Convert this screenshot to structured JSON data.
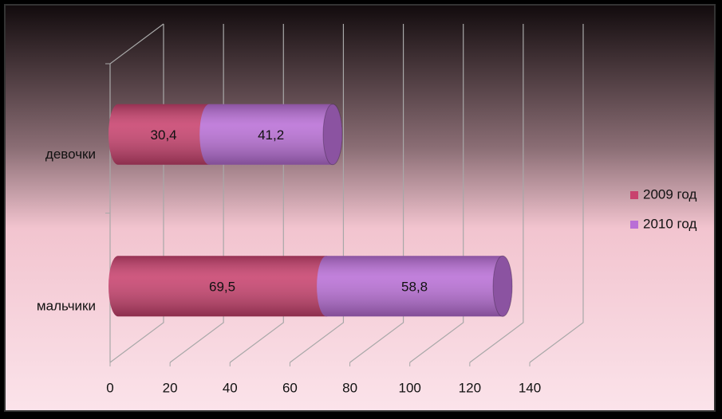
{
  "chart_data": {
    "type": "bar",
    "orientation": "horizontal",
    "stacked": true,
    "categories": [
      "девочки",
      "мальчики"
    ],
    "series": [
      {
        "name": "2009 год",
        "color": "#c8426e",
        "values": [
          30.4,
          69.5
        ],
        "value_labels": [
          "30,4",
          "69,5"
        ]
      },
      {
        "name": "2010 год",
        "color": "#b96fd6",
        "values": [
          41.2,
          58.8
        ],
        "value_labels": [
          "41,2",
          "58,8"
        ]
      }
    ],
    "xlim": [
      0,
      140
    ],
    "xticks": [
      0,
      20,
      40,
      60,
      80,
      100,
      120,
      140
    ],
    "grid": true,
    "legend": "right"
  }
}
